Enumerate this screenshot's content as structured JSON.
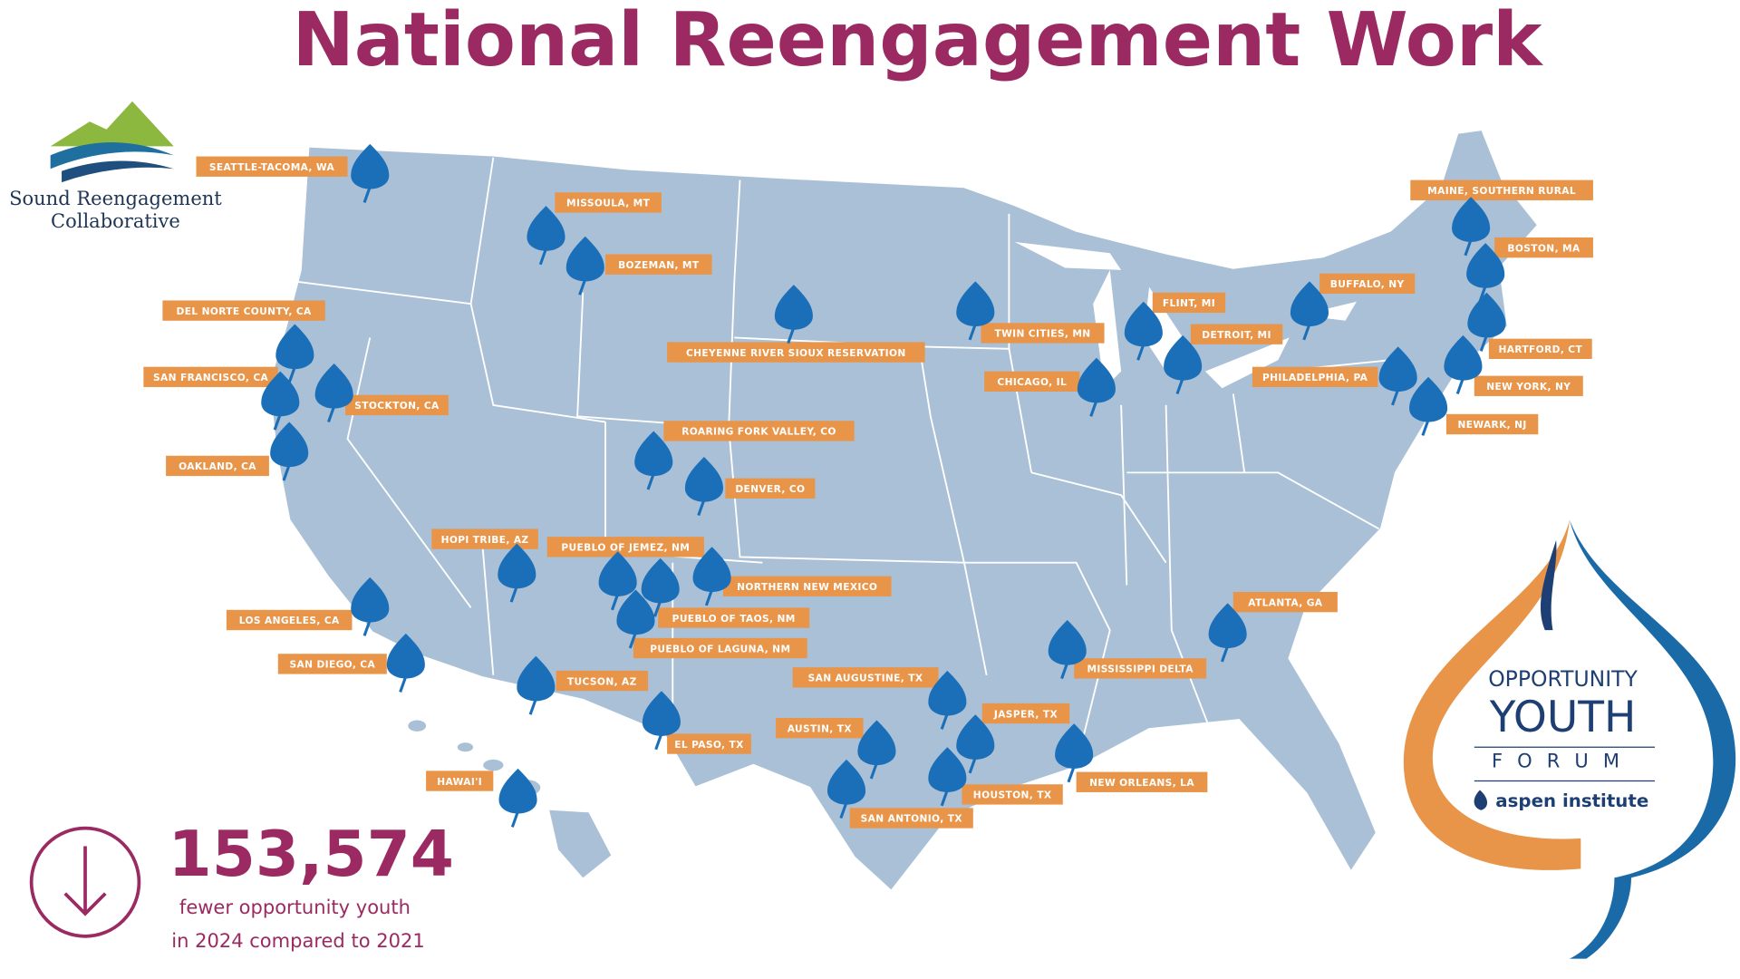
{
  "header": {
    "title": "National Reengagement Work"
  },
  "logo": {
    "line1": "Sound Reengagement",
    "line2": "Collaborative"
  },
  "locations": [
    "SEATTLE-TACOMA, WA",
    "MISSOULA, MT",
    "BOZEMAN, MT",
    "DEL NORTE COUNTY, CA",
    "CHEYENNE RIVER SIOUX RESERVATION",
    "SAN FRANCISCO, CA",
    "STOCKTON, CA",
    "OAKLAND, CA",
    "ROARING FORK VALLEY, CO",
    "DENVER, CO",
    "HOPI TRIBE, AZ",
    "PUEBLO OF JEMEZ, NM",
    "NORTHERN NEW MEXICO",
    "PUEBLO OF TAOS, NM",
    "PUEBLO OF LAGUNA, NM",
    "LOS ANGELES, CA",
    "SAN DIEGO, CA",
    "TUCSON, AZ",
    "EL PASO, TX",
    "SAN AUGUSTINE, TX",
    "JASPER, TX",
    "AUSTIN, TX",
    "HOUSTON, TX",
    "SAN ANTONIO, TX",
    "HAWAI'I",
    "TWIN CITIES, MN",
    "CHICAGO, IL",
    "FLINT, MI",
    "DETROIT, MI",
    "MISSISSIPPI DELTA",
    "NEW ORLEANS, LA",
    "ATLANTA, GA",
    "BUFFALO, NY",
    "PHILADELPHIA, PA",
    "MAINE, SOUTHERN RURAL",
    "BOSTON, MA",
    "HARTFORD, CT",
    "NEW YORK, NY",
    "NEWARK, NJ"
  ],
  "stat": {
    "number": "153,574",
    "line1": "fewer opportunity youth",
    "line2": "in 2024 compared to 2021"
  },
  "forum_logo": {
    "line1": "OPPORTUNITY",
    "line2": "YOUTH",
    "line3": "FORUM",
    "line4": "aspen institute"
  }
}
